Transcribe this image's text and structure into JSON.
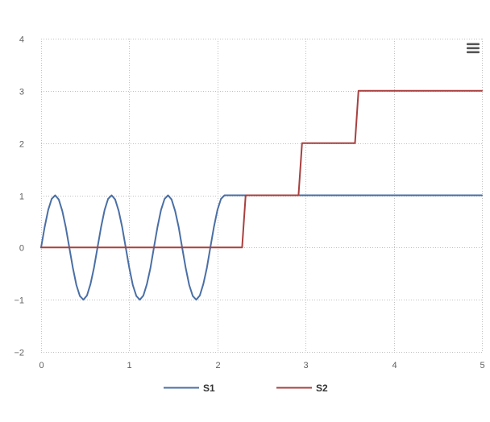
{
  "chart_data": {
    "type": "line",
    "title": "",
    "xlabel": "",
    "ylabel": "",
    "xlim": [
      0,
      5
    ],
    "ylim": [
      -2,
      4
    ],
    "x_ticks": [
      0,
      1,
      2,
      3,
      4,
      5
    ],
    "x_tick_labels": [
      "0",
      "1",
      "2",
      "3",
      "4",
      "5"
    ],
    "y_ticks": [
      -2,
      -1,
      0,
      1,
      2,
      3,
      4
    ],
    "y_tick_labels": [
      "−2",
      "−1",
      "0",
      "1",
      "2",
      "3",
      "4"
    ],
    "grid": true,
    "legend_position": "bottom-center",
    "series": [
      {
        "name": "S1",
        "color": "#4a6fa5",
        "x": [
          0,
          0.04,
          0.08,
          0.12,
          0.16,
          0.2,
          0.24,
          0.28,
          0.32,
          0.36,
          0.4,
          0.44,
          0.48,
          0.52,
          0.56,
          0.6,
          0.64,
          0.68,
          0.72,
          0.76,
          0.8,
          0.84,
          0.88,
          0.92,
          0.96,
          1.0,
          1.04,
          1.08,
          1.12,
          1.16,
          1.2,
          1.24,
          1.28,
          1.32,
          1.36,
          1.4,
          1.44,
          1.48,
          1.52,
          1.56,
          1.6,
          1.64,
          1.68,
          1.72,
          1.76,
          1.8,
          1.84,
          1.88,
          1.92,
          1.96,
          2.0,
          2.04,
          2.08,
          5.0
        ],
        "y": [
          0,
          0.39,
          0.72,
          0.93,
          1.0,
          0.92,
          0.7,
          0.39,
          0.0,
          -0.39,
          -0.72,
          -0.93,
          -1.0,
          -0.92,
          -0.7,
          -0.39,
          0.0,
          0.39,
          0.72,
          0.93,
          1.0,
          0.92,
          0.7,
          0.39,
          0.0,
          -0.39,
          -0.72,
          -0.93,
          -1.0,
          -0.92,
          -0.7,
          -0.39,
          0.0,
          0.39,
          0.72,
          0.93,
          1.0,
          0.92,
          0.7,
          0.39,
          0.0,
          -0.39,
          -0.72,
          -0.93,
          -1.0,
          -0.92,
          -0.7,
          -0.39,
          0.0,
          0.39,
          0.72,
          0.93,
          1.0,
          1.0
        ]
      },
      {
        "name": "S2",
        "color": "#a8403f",
        "x": [
          0,
          2.28,
          2.32,
          2.92,
          2.96,
          3.56,
          3.6,
          5.0
        ],
        "y": [
          0,
          0,
          1,
          1,
          2,
          2,
          3,
          3
        ]
      }
    ]
  },
  "menu": {
    "icon": "hamburger-menu-icon"
  }
}
